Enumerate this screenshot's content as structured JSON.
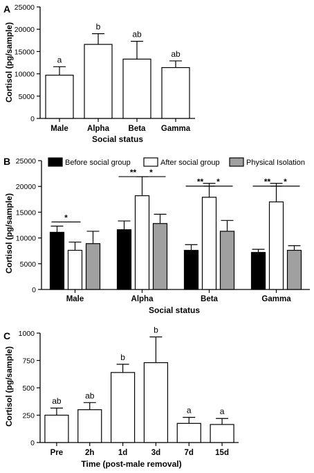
{
  "chart_data": [
    {
      "panel": "A",
      "type": "bar",
      "categories": [
        "Male",
        "Alpha",
        "Beta",
        "Gamma"
      ],
      "values": [
        9700,
        16600,
        13300,
        11400
      ],
      "errors": [
        1900,
        2400,
        4000,
        1500
      ],
      "letters": [
        "a",
        "b",
        "ab",
        "ab"
      ],
      "xlabel": "Social status",
      "ylabel": "Cortisol (pg/sample)",
      "ylim": [
        0,
        25000
      ],
      "yticks": [
        0,
        5000,
        10000,
        15000,
        20000,
        25000
      ],
      "bar_color": "#ffffff"
    },
    {
      "panel": "B",
      "type": "bar",
      "categories": [
        "Male",
        "Alpha",
        "Beta",
        "Gamma"
      ],
      "series": [
        {
          "name": "Before social group",
          "color": "#000000",
          "values": [
            11100,
            11600,
            7600,
            7200
          ],
          "errors": [
            1200,
            1700,
            1100,
            600
          ]
        },
        {
          "name": "After social group",
          "color": "#ffffff",
          "values": [
            7600,
            18200,
            17900,
            17000
          ],
          "errors": [
            1600,
            3700,
            2700,
            3600
          ]
        },
        {
          "name": "Physical Isolation",
          "color": "#a0a0a0",
          "values": [
            8900,
            12800,
            11300,
            7600
          ],
          "errors": [
            2400,
            1800,
            2100,
            900
          ]
        }
      ],
      "significance": [
        {
          "category": 0,
          "from": 0,
          "to": 1,
          "label": "*"
        },
        {
          "category": 1,
          "from": 0,
          "to": 1,
          "label": "**"
        },
        {
          "category": 1,
          "from": 1,
          "to": 2,
          "label": "*"
        },
        {
          "category": 2,
          "from": 0,
          "to": 1,
          "label": "**"
        },
        {
          "category": 2,
          "from": 1,
          "to": 2,
          "label": "*"
        },
        {
          "category": 3,
          "from": 0,
          "to": 1,
          "label": "**"
        },
        {
          "category": 3,
          "from": 1,
          "to": 2,
          "label": "*"
        }
      ],
      "xlabel": "Social status",
      "ylabel": "Cortisol (pg/sample)",
      "ylim": [
        0,
        25000
      ],
      "yticks": [
        0,
        5000,
        10000,
        15000,
        20000,
        25000
      ],
      "legend_placement": "top"
    },
    {
      "panel": "C",
      "type": "bar",
      "categories": [
        "Pre",
        "2h",
        "1d",
        "3d",
        "7d",
        "15d"
      ],
      "values": [
        250,
        300,
        640,
        730,
        175,
        165
      ],
      "errors": [
        65,
        65,
        75,
        235,
        55,
        55
      ],
      "letters": [
        "ab",
        "ab",
        "b",
        "b",
        "a",
        "a"
      ],
      "xlabel": "Time (post-male removal)",
      "ylabel": "Cortisol (pg/sample)",
      "ylim": [
        0,
        1000
      ],
      "yticks": [
        0,
        250,
        500,
        750,
        1000
      ],
      "bar_color": "#ffffff"
    }
  ]
}
